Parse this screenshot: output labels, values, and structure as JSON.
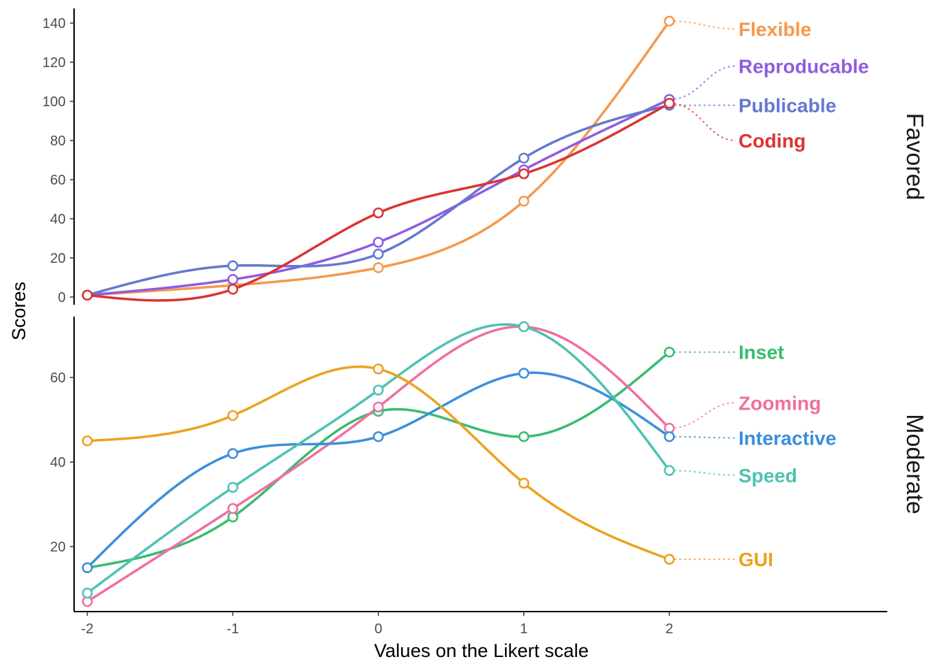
{
  "chart_data": {
    "type": "line",
    "xlabel": "Values on the Likert scale",
    "ylabel": "Scores",
    "x": [
      -2,
      -1,
      0,
      1,
      2
    ],
    "x_tick_labels": [
      "-2",
      "-1",
      "0",
      "1",
      "2"
    ],
    "xlim": [
      -2,
      2
    ],
    "grid": false,
    "legend": "direct labels at right end of each line",
    "panels": [
      {
        "strip_label": "Favored",
        "ylim": [
          0,
          140
        ],
        "y_ticks": [
          0,
          20,
          40,
          60,
          80,
          100,
          120,
          140
        ],
        "y_tick_labels": [
          "0",
          "20",
          "40",
          "60",
          "80",
          "100",
          "120",
          "140"
        ],
        "series": [
          {
            "name": "Flexible",
            "color": "#f4994d",
            "values": [
              1,
              6,
              15,
              49,
              141
            ],
            "label_y": 137
          },
          {
            "name": "Reproducable",
            "color": "#8f5ce0",
            "values": [
              1,
              9,
              28,
              65,
              101
            ],
            "label_y": 118
          },
          {
            "name": "Publicable",
            "color": "#6478d0",
            "values": [
              1,
              16,
              22,
              71,
              98
            ],
            "label_y": 98
          },
          {
            "name": "Coding",
            "color": "#dc3333",
            "values": [
              1,
              4,
              43,
              63,
              99
            ],
            "label_y": 80
          }
        ]
      },
      {
        "strip_label": "Moderate",
        "ylim": [
          6,
          74
        ],
        "y_ticks": [
          20,
          40,
          60
        ],
        "y_tick_labels": [
          "20",
          "40",
          "60"
        ],
        "series": [
          {
            "name": "Inset",
            "color": "#38bc6e",
            "values": [
              15,
              27,
              52,
              46,
              66
            ],
            "label_y": 66
          },
          {
            "name": "Zooming",
            "color": "#ef6fa0",
            "values": [
              7,
              29,
              53,
              72,
              48
            ],
            "label_y": 54
          },
          {
            "name": "Interactive",
            "color": "#3a8fdc",
            "values": [
              15,
              42,
              46,
              61,
              46
            ],
            "label_y": 45.7
          },
          {
            "name": "Speed",
            "color": "#4fc1b4",
            "values": [
              9,
              34,
              57,
              72,
              38
            ],
            "label_y": 36.9
          },
          {
            "name": "GUI",
            "color": "#eca21e",
            "values": [
              45,
              51,
              62,
              35,
              17
            ],
            "label_y": 17
          }
        ]
      }
    ]
  }
}
